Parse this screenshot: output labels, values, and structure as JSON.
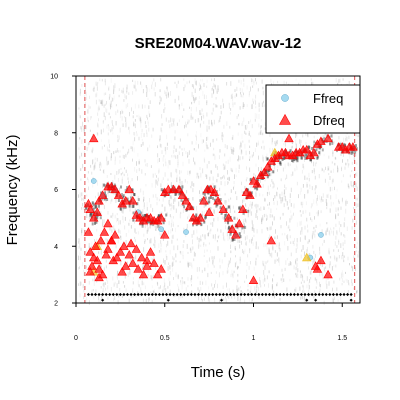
{
  "chart_data": {
    "type": "scatter",
    "title": "SRE20M04.WAV.wav-12",
    "xlabel": "Time (s)",
    "ylabel": "Frequency (kHz)",
    "xlim": [
      0,
      1.6
    ],
    "ylim": [
      2,
      10
    ],
    "x_ticks": [
      0,
      0.5,
      1,
      1.5
    ],
    "x_tick_labels": [
      "0",
      "0.5",
      "1",
      "1.5"
    ],
    "y_ticks": [
      2,
      4,
      6,
      8,
      10
    ],
    "y_tick_labels": [
      "2",
      "4",
      "6",
      "8",
      "10"
    ],
    "background": "grayscale spectrogram",
    "legend_position": "top-right",
    "selection_lines_x": [
      0.05,
      1.57
    ],
    "legend": [
      {
        "name": "Ffreq",
        "color": "#87ceeb",
        "marker": "circle"
      },
      {
        "name": "Dfreq",
        "color": "#ff0000",
        "marker": "triangle"
      }
    ],
    "series": [
      {
        "name": "Dfreq",
        "color": "#ff0000",
        "marker": "triangle",
        "x": [
          0.07,
          0.08,
          0.1,
          0.12,
          0.13,
          0.15,
          0.18,
          0.2,
          0.22,
          0.24,
          0.26,
          0.28,
          0.3,
          0.32,
          0.34,
          0.36,
          0.38,
          0.4,
          0.42,
          0.44,
          0.46,
          0.48,
          0.5,
          0.52,
          0.55,
          0.58,
          0.6,
          0.62,
          0.64,
          0.66,
          0.68,
          0.7,
          0.72,
          0.74,
          0.76,
          0.78,
          0.8,
          0.83,
          0.86,
          0.88,
          0.9,
          0.92,
          0.94,
          0.96,
          0.98,
          1.0,
          1.02,
          1.04,
          1.06,
          1.08,
          1.1,
          1.12,
          1.14,
          1.16,
          1.18,
          1.2,
          1.22,
          1.24,
          1.26,
          1.28,
          1.3,
          1.32,
          1.34,
          1.36,
          1.38,
          1.42,
          1.48,
          1.5,
          1.52,
          1.54,
          1.56,
          0.07,
          0.08,
          0.09,
          0.1,
          0.11,
          0.12,
          0.13,
          0.14,
          0.15,
          0.16,
          0.17,
          0.18,
          0.2,
          0.21,
          0.22,
          0.23,
          0.25,
          0.26,
          0.27,
          0.28,
          0.3,
          0.31,
          0.32,
          0.34,
          0.35,
          0.37,
          0.38,
          0.4,
          0.42,
          0.44,
          0.46,
          0.48,
          0.5,
          0.1,
          0.08,
          0.13,
          0.4,
          0.2,
          0.18,
          1.0,
          1.1,
          1.36,
          1.38,
          1.42,
          1.35,
          1.2,
          0.75
        ],
        "y": [
          5.5,
          5.3,
          5.0,
          5.2,
          5.6,
          5.8,
          6.1,
          6.1,
          6.0,
          5.8,
          5.5,
          5.6,
          6.0,
          5.6,
          5.1,
          5.0,
          4.9,
          5.0,
          5.0,
          4.9,
          4.9,
          5.0,
          5.9,
          6.0,
          6.0,
          6.0,
          5.8,
          5.6,
          5.4,
          5.0,
          4.9,
          5.0,
          5.6,
          6.0,
          6.0,
          5.9,
          5.6,
          5.3,
          5.0,
          4.6,
          4.4,
          4.8,
          5.3,
          5.9,
          5.8,
          6.3,
          6.2,
          6.5,
          6.6,
          6.8,
          7.0,
          7.1,
          7.2,
          7.3,
          7.3,
          7.2,
          7.2,
          7.3,
          7.3,
          7.4,
          7.4,
          7.2,
          7.3,
          7.6,
          7.7,
          7.8,
          7.5,
          7.5,
          7.4,
          7.5,
          7.5,
          4.5,
          3.8,
          3.3,
          3.6,
          4.0,
          3.5,
          3.2,
          4.2,
          3.0,
          4.5,
          3.7,
          3.9,
          4.2,
          3.5,
          4.4,
          3.6,
          3.8,
          3.1,
          4.0,
          3.3,
          3.7,
          4.1,
          3.4,
          3.9,
          3.2,
          3.6,
          3.0,
          3.5,
          3.8,
          3.4,
          3.0,
          3.2,
          4.4,
          7.8,
          3.1,
          2.9,
          3.3,
          4.2,
          4.8,
          2.8,
          4.2,
          3.2,
          3.5,
          3.0,
          3.3,
          7.8,
          5.2
        ]
      },
      {
        "name": "Ffreq",
        "color": "#87ceeb",
        "marker": "circle",
        "x": [
          0.1,
          0.15,
          0.22,
          0.35,
          0.48,
          0.62,
          0.9,
          1.12,
          1.38,
          1.32
        ],
        "y": [
          6.3,
          5.8,
          6.0,
          5.2,
          4.6,
          4.5,
          4.4,
          7.2,
          4.4,
          3.6
        ]
      },
      {
        "name": "",
        "color": "#f0c020",
        "marker": "triangle",
        "x": [
          0.1,
          0.12,
          1.12,
          1.3
        ],
        "y": [
          3.1,
          4.0,
          7.3,
          3.6
        ]
      },
      {
        "name": "",
        "color": "#000000",
        "marker": "diamond",
        "x": [
          0.07,
          0.09,
          0.11,
          0.13,
          0.15,
          0.17,
          0.19,
          0.21,
          0.23,
          0.25,
          0.27,
          0.29,
          0.31,
          0.33,
          0.35,
          0.37,
          0.39,
          0.41,
          0.43,
          0.45,
          0.47,
          0.49,
          0.51,
          0.53,
          0.55,
          0.57,
          0.59,
          0.61,
          0.63,
          0.65,
          0.67,
          0.69,
          0.71,
          0.73,
          0.75,
          0.77,
          0.79,
          0.81,
          0.83,
          0.85,
          0.87,
          0.89,
          0.91,
          0.93,
          0.95,
          0.97,
          0.99,
          1.01,
          1.03,
          1.05,
          1.07,
          1.09,
          1.11,
          1.13,
          1.15,
          1.17,
          1.19,
          1.21,
          1.23,
          1.25,
          1.27,
          1.29,
          1.31,
          1.33,
          1.35,
          1.37,
          1.39,
          1.41,
          1.43,
          1.45,
          1.47,
          1.49,
          1.51,
          1.53,
          1.55,
          0.15,
          0.52,
          0.82,
          1.3,
          1.35,
          1.55
        ],
        "y": [
          2.3,
          2.3,
          2.3,
          2.3,
          2.3,
          2.3,
          2.3,
          2.3,
          2.3,
          2.3,
          2.3,
          2.3,
          2.3,
          2.3,
          2.3,
          2.3,
          2.3,
          2.3,
          2.3,
          2.3,
          2.3,
          2.3,
          2.3,
          2.3,
          2.3,
          2.3,
          2.3,
          2.3,
          2.3,
          2.3,
          2.3,
          2.3,
          2.3,
          2.3,
          2.3,
          2.3,
          2.3,
          2.3,
          2.3,
          2.3,
          2.3,
          2.3,
          2.3,
          2.3,
          2.3,
          2.3,
          2.3,
          2.3,
          2.3,
          2.3,
          2.3,
          2.3,
          2.3,
          2.3,
          2.3,
          2.3,
          2.3,
          2.3,
          2.3,
          2.3,
          2.3,
          2.3,
          2.3,
          2.3,
          2.3,
          2.3,
          2.3,
          2.3,
          2.3,
          2.3,
          2.3,
          2.3,
          2.3,
          2.3,
          2.3,
          2.1,
          2.1,
          2.1,
          2.1,
          2.1,
          2.1
        ]
      }
    ]
  }
}
